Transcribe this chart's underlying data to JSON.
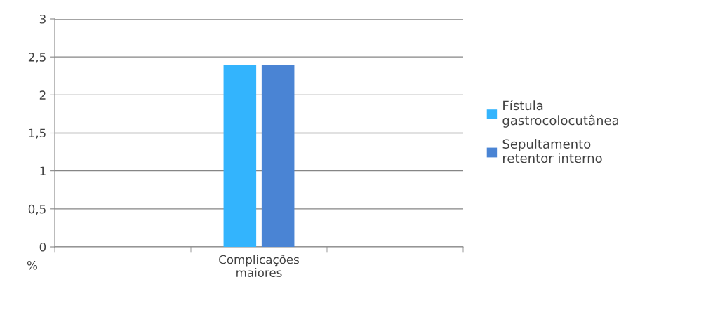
{
  "chart_data": {
    "type": "bar",
    "ylabel": "%",
    "categories": [
      null,
      "Complicações maiores",
      null
    ],
    "series": [
      {
        "name": "Fístula gastrocolocutânea",
        "color": "#33b4fd",
        "values": [
          null,
          2.4,
          null
        ]
      },
      {
        "name": "Sepultamento retentor interno",
        "color": "#4a84d4",
        "values": [
          null,
          2.4,
          null
        ]
      }
    ],
    "ylim": [
      0,
      3
    ],
    "yticks": [
      0,
      {
        "value": 0.5,
        "label": "0,5"
      },
      1,
      {
        "value": 1.5,
        "label": "1,5"
      },
      2,
      {
        "value": 2.5,
        "label": "2,5"
      },
      3
    ],
    "grid": "y",
    "legend": "right"
  }
}
